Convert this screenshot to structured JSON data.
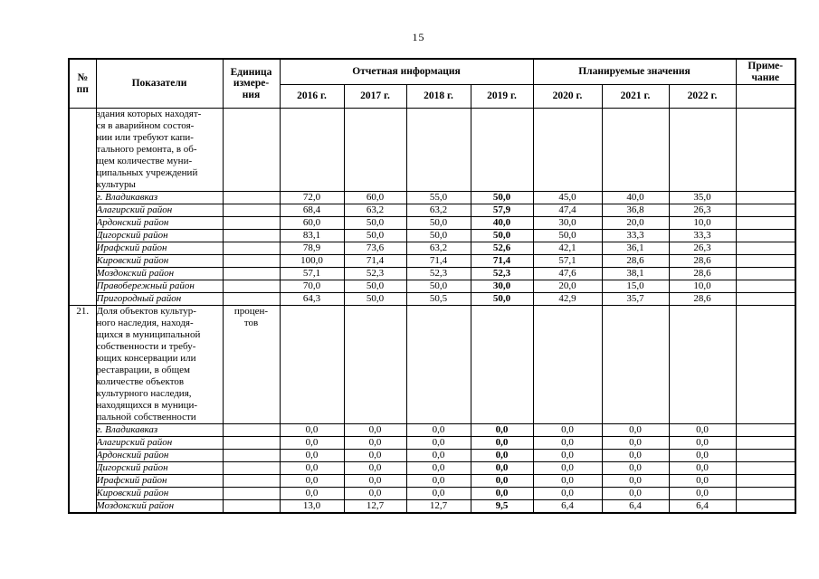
{
  "page": {
    "number": "15"
  },
  "table": {
    "header": {
      "num": "№\nпп",
      "indicators": "Показатели",
      "unit": "Единица\nизмере-\nния",
      "reported_group": "Отчетная информация",
      "planned_group": "Планируемые значения",
      "note": "Приме-\nчание",
      "years": [
        "2016 г.",
        "2017 г.",
        "2018 г.",
        "2019 г.",
        "2020 г.",
        "2021 г.",
        "2022 г."
      ]
    },
    "sections": [
      {
        "num": "",
        "unit": "",
        "indicator": "здания которых находят-\nся  в аварийном состоя-\nнии или требуют капи-\nтального ремонта, в об-\nщем  количестве муни-\nципальных учреждений\nкультуры",
        "rows": [
          {
            "name": "г. Владикавказ",
            "values": [
              "72,0",
              "60,0",
              "55,0",
              "50,0",
              "45,0",
              "40,0",
              "35,0"
            ]
          },
          {
            "name": "Алагирский район",
            "values": [
              "68,4",
              "63,2",
              "63,2",
              "57,9",
              "47,4",
              "36,8",
              "26,3"
            ]
          },
          {
            "name": "Ардонский район",
            "values": [
              "60,0",
              "50,0",
              "50,0",
              "40,0",
              "30,0",
              "20,0",
              "10,0"
            ]
          },
          {
            "name": "Дигорский район",
            "values": [
              "83,1",
              "50,0",
              "50,0",
              "50,0",
              "50,0",
              "33,3",
              "33,3"
            ]
          },
          {
            "name": "Ирафский район",
            "values": [
              "78,9",
              "73,6",
              "63,2",
              "52,6",
              "42,1",
              "36,1",
              "26,3"
            ]
          },
          {
            "name": "Кировский район",
            "values": [
              "100,0",
              "71,4",
              "71,4",
              "71,4",
              "57,1",
              "28,6",
              "28,6"
            ]
          },
          {
            "name": "Моздокский район",
            "values": [
              "57,1",
              "52,3",
              "52,3",
              "52,3",
              "47,6",
              "38,1",
              "28,6"
            ]
          },
          {
            "name": "Правобережный район",
            "values": [
              "70,0",
              "50,0",
              "50,0",
              "30,0",
              "20,0",
              "15,0",
              "10,0"
            ]
          },
          {
            "name": "Пригородный район",
            "values": [
              "64,3",
              "50,0",
              "50,5",
              "50,0",
              "42,9",
              "35,7",
              "28,6"
            ]
          }
        ]
      },
      {
        "num": "21.",
        "unit": "процен-\nтов",
        "indicator": "Доля объектов культур-\nного наследия, находя-\nщихся в муниципальной\nсобственности и требу-\nющих консервации или\nреставрации, в общем\nколичестве объектов\nкультурного наследия,\nнаходящихся в муници-\nпальной собственности",
        "rows": [
          {
            "name": "г. Владикавказ",
            "values": [
              "0,0",
              "0,0",
              "0,0",
              "0,0",
              "0,0",
              "0,0",
              "0,0"
            ]
          },
          {
            "name": "Алагирский район",
            "values": [
              "0,0",
              "0,0",
              "0,0",
              "0,0",
              "0,0",
              "0,0",
              "0,0"
            ]
          },
          {
            "name": "Ардонский район",
            "values": [
              "0,0",
              "0,0",
              "0,0",
              "0,0",
              "0,0",
              "0,0",
              "0,0"
            ]
          },
          {
            "name": "Дигорский район",
            "values": [
              "0,0",
              "0,0",
              "0,0",
              "0,0",
              "0,0",
              "0,0",
              "0,0"
            ]
          },
          {
            "name": "Ирафский район",
            "values": [
              "0,0",
              "0,0",
              "0,0",
              "0,0",
              "0,0",
              "0,0",
              "0,0"
            ]
          },
          {
            "name": "Кировский район",
            "values": [
              "0,0",
              "0,0",
              "0,0",
              "0,0",
              "0,0",
              "0,0",
              "0,0"
            ]
          },
          {
            "name": "Моздокский район",
            "values": [
              "13,0",
              "12,7",
              "12,7",
              "9,5",
              "6,4",
              "6,4",
              "6,4"
            ]
          }
        ]
      }
    ]
  }
}
